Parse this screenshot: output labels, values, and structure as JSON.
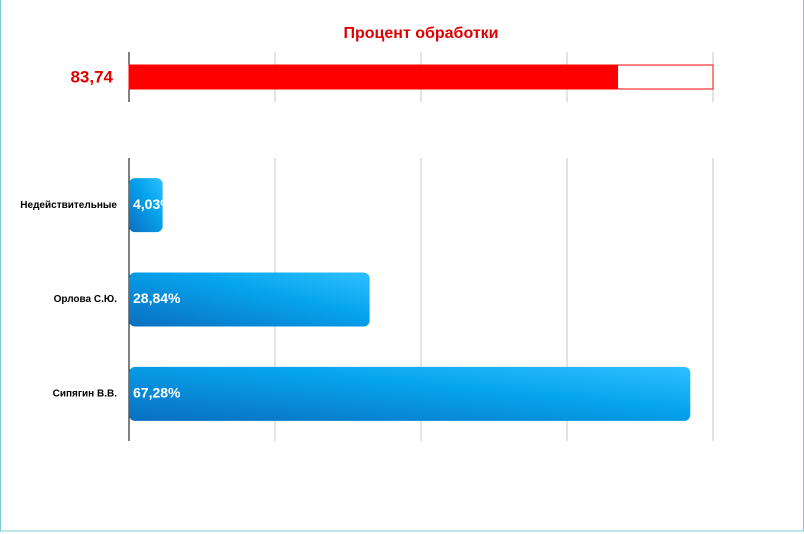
{
  "chart_data": [
    {
      "type": "progress",
      "title": "Процент обработки",
      "values": [
        83.74
      ],
      "value_labels": [
        "83,74"
      ],
      "color": "#ff0000",
      "xlim": [
        0,
        100
      ],
      "xticks": [
        0,
        25,
        50,
        75,
        100
      ],
      "grid": true
    },
    {
      "type": "bar",
      "orientation": "horizontal",
      "categories": [
        "Недействительные",
        "Орлова С.Ю.",
        "Сипягин В.В."
      ],
      "values": [
        4.03,
        28.84,
        67.28
      ],
      "value_labels": [
        "4,03%",
        "28,84%",
        "67,28%"
      ],
      "color": "#0a8fe0",
      "xlim": [
        0,
        70
      ],
      "xticks": [
        0,
        17.5,
        35,
        52.5,
        70
      ],
      "grid": true
    }
  ]
}
